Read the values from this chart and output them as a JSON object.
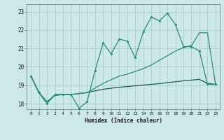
{
  "xlabel": "Humidex (Indice chaleur)",
  "bg_color": "#cce8e8",
  "grid_color": "#aacccc",
  "line1_color": "#2a8a7a",
  "line2_color": "#2a8a7a",
  "line3_color": "#1a5a50",
  "xlim": [
    -0.5,
    23.5
  ],
  "ylim": [
    17.7,
    23.4
  ],
  "xticks": [
    0,
    1,
    2,
    3,
    4,
    5,
    6,
    7,
    8,
    9,
    10,
    11,
    12,
    13,
    14,
    15,
    16,
    17,
    18,
    19,
    20,
    21,
    22,
    23
  ],
  "yticks": [
    18,
    19,
    20,
    21,
    22,
    23
  ],
  "line1_x": [
    0,
    1,
    2,
    3,
    4,
    5,
    6,
    7,
    8,
    9,
    10,
    11,
    12,
    13,
    14,
    15,
    16,
    17,
    18,
    19,
    20,
    21,
    22,
    23
  ],
  "line1_y": [
    19.5,
    18.6,
    18.0,
    18.5,
    18.5,
    18.5,
    17.75,
    18.1,
    19.8,
    21.3,
    20.7,
    21.5,
    21.4,
    20.5,
    21.9,
    22.7,
    22.5,
    22.9,
    22.3,
    21.1,
    21.1,
    20.85,
    19.05,
    19.05
  ],
  "line2_x": [
    0,
    1,
    2,
    3,
    4,
    5,
    6,
    7,
    8,
    9,
    10,
    11,
    12,
    13,
    14,
    15,
    16,
    17,
    18,
    19,
    20,
    21,
    22,
    23
  ],
  "line2_y": [
    19.5,
    18.6,
    18.1,
    18.45,
    18.5,
    18.5,
    18.55,
    18.6,
    18.85,
    19.1,
    19.3,
    19.5,
    19.6,
    19.75,
    19.9,
    20.1,
    20.35,
    20.6,
    20.85,
    21.05,
    21.15,
    21.85,
    21.85,
    19.05
  ],
  "line3_x": [
    0,
    1,
    2,
    3,
    4,
    5,
    6,
    7,
    8,
    9,
    10,
    11,
    12,
    13,
    14,
    15,
    16,
    17,
    18,
    19,
    20,
    21,
    22,
    23
  ],
  "line3_y": [
    19.5,
    18.6,
    18.1,
    18.45,
    18.5,
    18.5,
    18.55,
    18.6,
    18.7,
    18.78,
    18.84,
    18.89,
    18.93,
    18.97,
    19.01,
    19.05,
    19.09,
    19.14,
    19.19,
    19.24,
    19.28,
    19.32,
    19.1,
    19.05
  ]
}
